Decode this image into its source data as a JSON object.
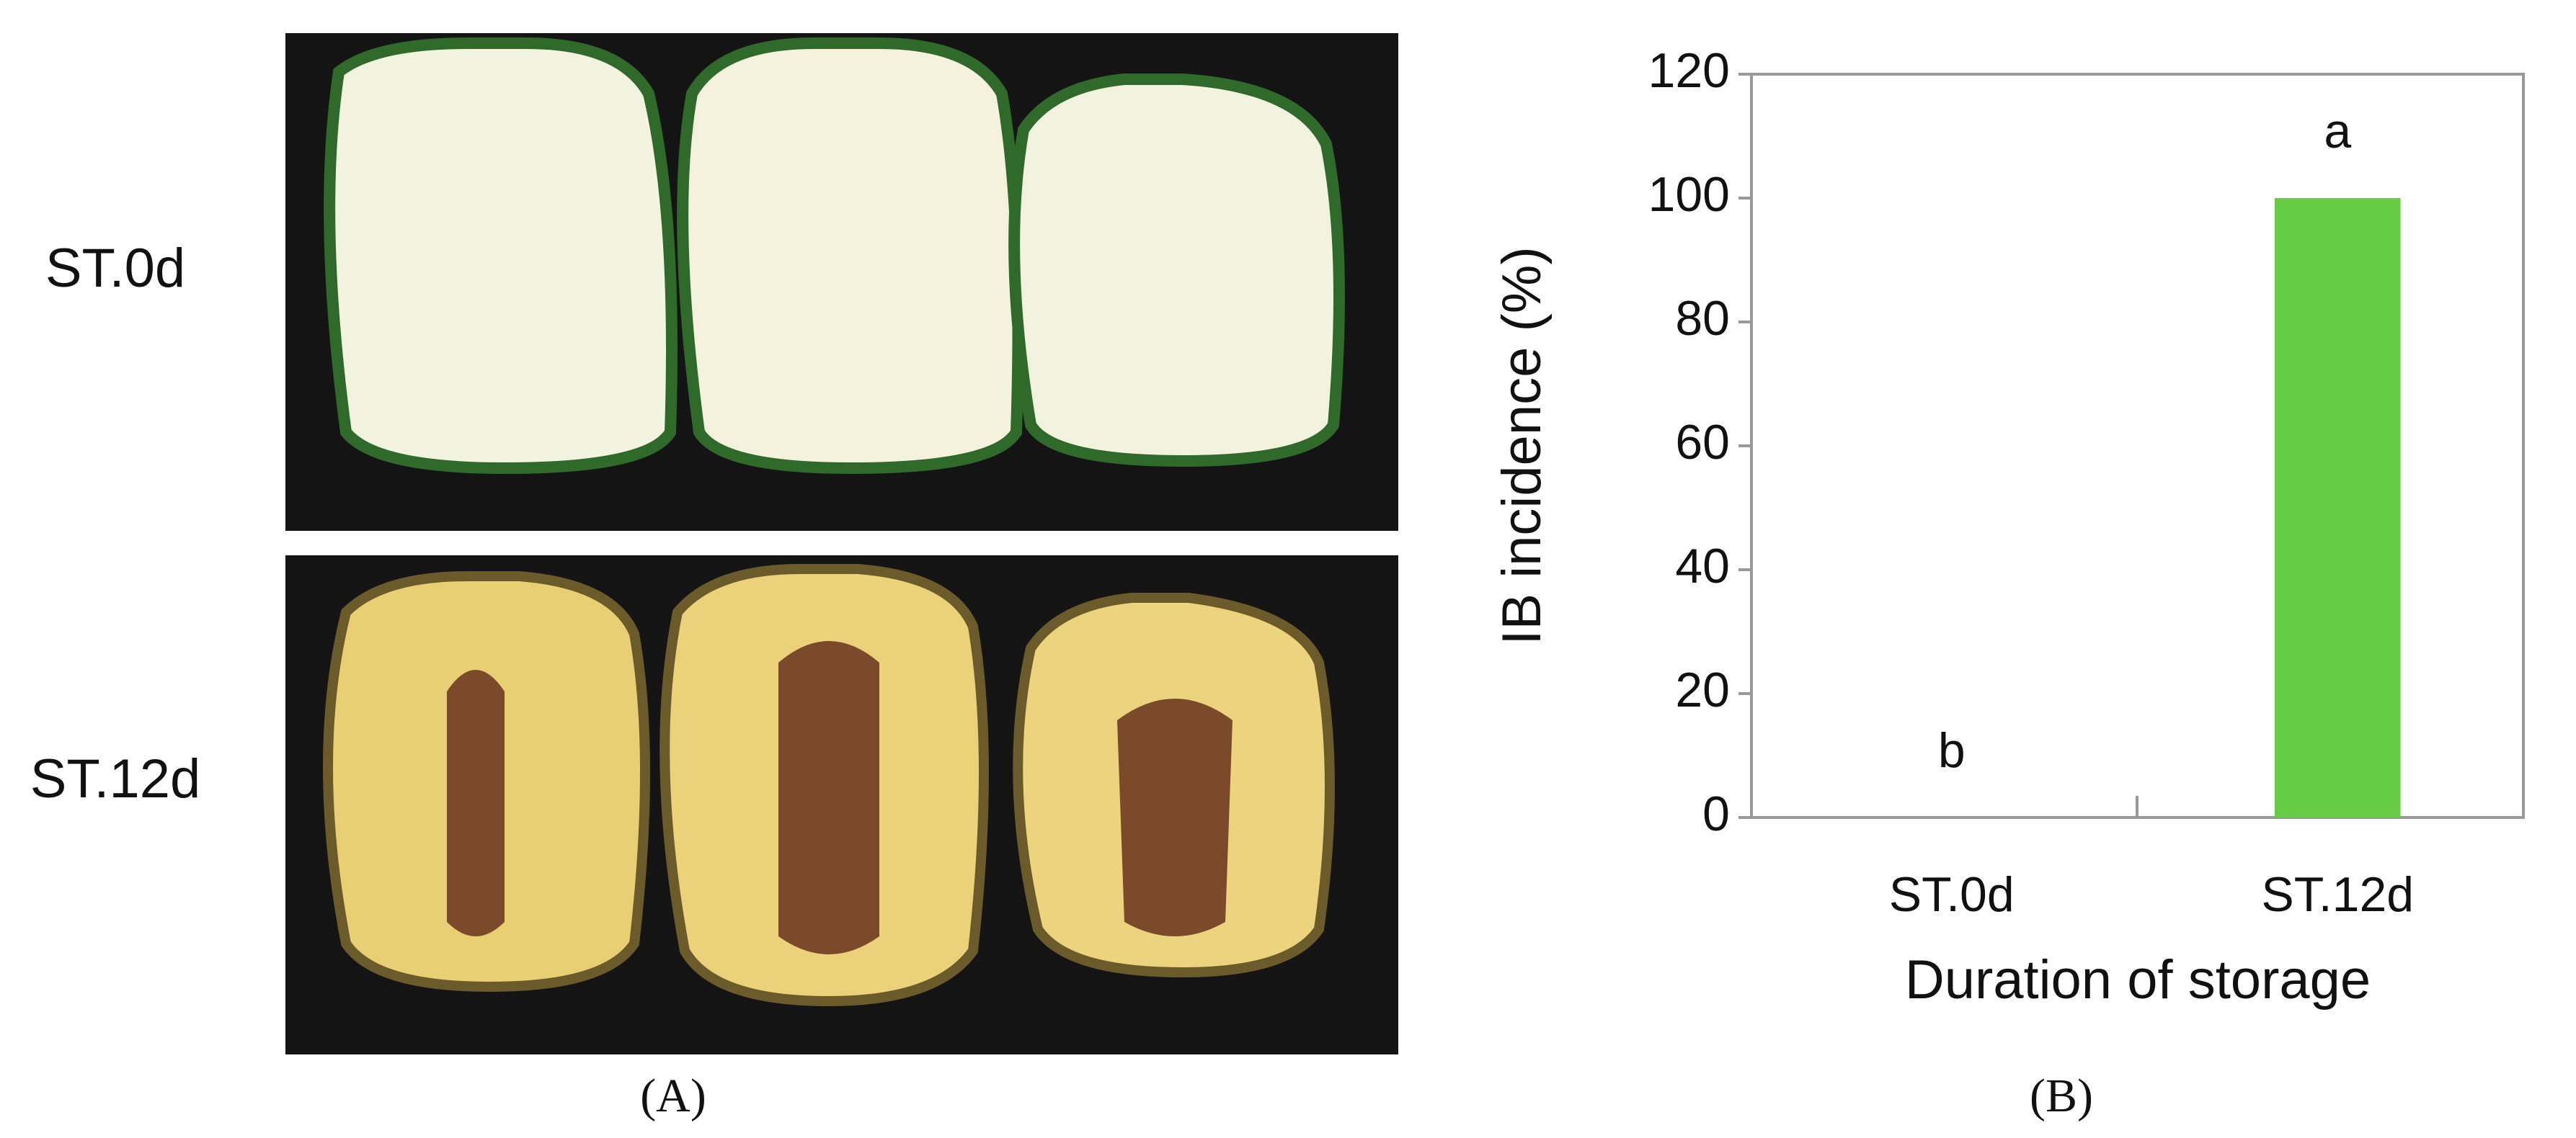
{
  "panel_a": {
    "label": "(A)",
    "rows": [
      "ST.0d",
      "ST.12d"
    ]
  },
  "chart_data": {
    "type": "bar",
    "panel_label": "(B)",
    "y_label": "IB incidence (%)",
    "x_label": "Duration of storage",
    "categories": [
      "ST.0d",
      "ST.12d"
    ],
    "values": [
      0,
      100
    ],
    "annotations": [
      "b",
      "a"
    ],
    "color": "#66cc44",
    "ylim": [
      0,
      120
    ],
    "yticks": [
      0,
      20,
      40,
      60,
      80,
      100,
      120
    ]
  }
}
